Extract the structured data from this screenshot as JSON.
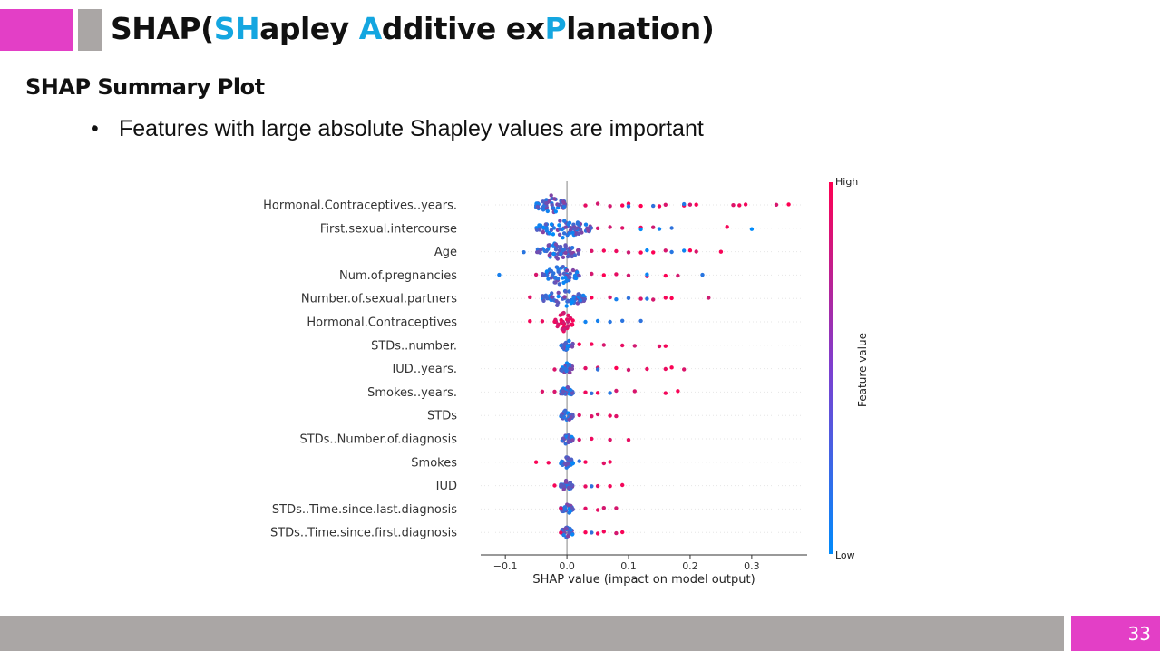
{
  "colors": {
    "accent": "#e33fc6",
    "gray": "#aaa6a5",
    "highlight": "#14a6e0",
    "high": "#ff0052",
    "low": "#008bfb"
  },
  "slide": {
    "title_parts": [
      {
        "text": "SHAP(",
        "hl": false
      },
      {
        "text": "SH",
        "hl": true
      },
      {
        "text": "apley ",
        "hl": false
      },
      {
        "text": "A",
        "hl": true
      },
      {
        "text": "dditive ex",
        "hl": false
      },
      {
        "text": "P",
        "hl": true
      },
      {
        "text": "lanation)",
        "hl": false
      }
    ],
    "subtitle": "SHAP Summary Plot",
    "bullet_symbol": "•",
    "bullet": "Features with large absolute Shapley values are important",
    "page_number": "33"
  },
  "chart_data": {
    "type": "scatter",
    "subtype": "shap-beeswarm",
    "xlabel": "SHAP value (impact on model output)",
    "xticks": [
      -0.1,
      0.0,
      0.1,
      0.2,
      0.3
    ],
    "xtick_labels": [
      "−0.1",
      "0.0",
      "0.1",
      "0.2",
      "0.3"
    ],
    "xlim": [
      -0.14,
      0.39
    ],
    "colorbar": {
      "label": "Feature value",
      "high": "High",
      "low": "Low"
    },
    "features": [
      {
        "name": "Hormonal.Contraceptives..years.",
        "core": [
          -0.05,
          0.0
        ],
        "high_points": [
          0.03,
          0.05,
          0.07,
          0.09,
          0.1,
          0.12,
          0.15,
          0.16,
          0.19,
          0.2,
          0.21,
          0.27,
          0.28,
          0.29,
          0.34,
          0.36
        ],
        "low_points": [
          0.1,
          0.14,
          0.19
        ]
      },
      {
        "name": "First.sexual.intercourse",
        "core": [
          -0.05,
          0.04
        ],
        "high_points": [
          0.05,
          0.07,
          0.09,
          0.12,
          0.14,
          0.26
        ],
        "low_points": [
          0.12,
          0.15,
          0.17,
          0.3
        ]
      },
      {
        "name": "Age",
        "core": [
          -0.05,
          0.02
        ],
        "high_points": [
          0.04,
          0.06,
          0.08,
          0.1,
          0.12,
          0.14,
          0.16,
          0.2,
          0.21,
          0.25
        ],
        "low_points": [
          -0.07,
          0.13,
          0.17,
          0.19
        ]
      },
      {
        "name": "Num.of.pregnancies",
        "core": [
          -0.04,
          0.02
        ],
        "high_points": [
          -0.05,
          0.04,
          0.06,
          0.08,
          0.1,
          0.13,
          0.16,
          0.18
        ],
        "low_points": [
          -0.11,
          0.13,
          0.22
        ]
      },
      {
        "name": "Number.of.sexual.partners",
        "core": [
          -0.04,
          0.03
        ],
        "high_points": [
          -0.06,
          0.04,
          0.07,
          0.12,
          0.14,
          0.16,
          0.17,
          0.23
        ],
        "low_points": [
          0.08,
          0.1,
          0.13
        ]
      },
      {
        "name": "Hormonal.Contraceptives",
        "core": [
          -0.02,
          0.01
        ],
        "high_points": [
          -0.06,
          -0.04,
          -0.02
        ],
        "low_points": [
          0.03,
          0.05,
          0.07,
          0.09,
          0.12
        ]
      },
      {
        "name": "STDs..number.",
        "core": [
          -0.01,
          0.01
        ],
        "high_points": [
          0.02,
          0.04,
          0.06,
          0.09,
          0.11,
          0.15,
          0.16
        ],
        "low_points": []
      },
      {
        "name": "IUD..years.",
        "core": [
          -0.01,
          0.01
        ],
        "high_points": [
          -0.02,
          0.03,
          0.05,
          0.08,
          0.1,
          0.13,
          0.16,
          0.17,
          0.19
        ],
        "low_points": [
          0.05
        ]
      },
      {
        "name": "Smokes..years.",
        "core": [
          -0.01,
          0.01
        ],
        "high_points": [
          -0.04,
          -0.02,
          0.03,
          0.05,
          0.08,
          0.11,
          0.16,
          0.18
        ],
        "low_points": [
          0.04,
          0.07
        ]
      },
      {
        "name": "STDs",
        "core": [
          -0.01,
          0.01
        ],
        "high_points": [
          0.02,
          0.04,
          0.05,
          0.07,
          0.08
        ],
        "low_points": []
      },
      {
        "name": "STDs..Number.of.diagnosis",
        "core": [
          -0.01,
          0.01
        ],
        "high_points": [
          0.02,
          0.04,
          0.07,
          0.1
        ],
        "low_points": []
      },
      {
        "name": "Smokes",
        "core": [
          -0.01,
          0.01
        ],
        "high_points": [
          -0.05,
          -0.03,
          0.03,
          0.06,
          0.07
        ],
        "low_points": [
          0.02
        ]
      },
      {
        "name": "IUD",
        "core": [
          -0.01,
          0.01
        ],
        "high_points": [
          -0.02,
          0.03,
          0.05,
          0.07,
          0.09
        ],
        "low_points": [
          0.04
        ]
      },
      {
        "name": "STDs..Time.since.last.diagnosis",
        "core": [
          -0.01,
          0.01
        ],
        "high_points": [
          -0.01,
          0.03,
          0.05,
          0.06,
          0.08
        ],
        "low_points": []
      },
      {
        "name": "STDs..Time.since.first.diagnosis",
        "core": [
          -0.01,
          0.01
        ],
        "high_points": [
          -0.01,
          0.03,
          0.05,
          0.06,
          0.08,
          0.09
        ],
        "low_points": [
          0.04
        ]
      }
    ]
  }
}
